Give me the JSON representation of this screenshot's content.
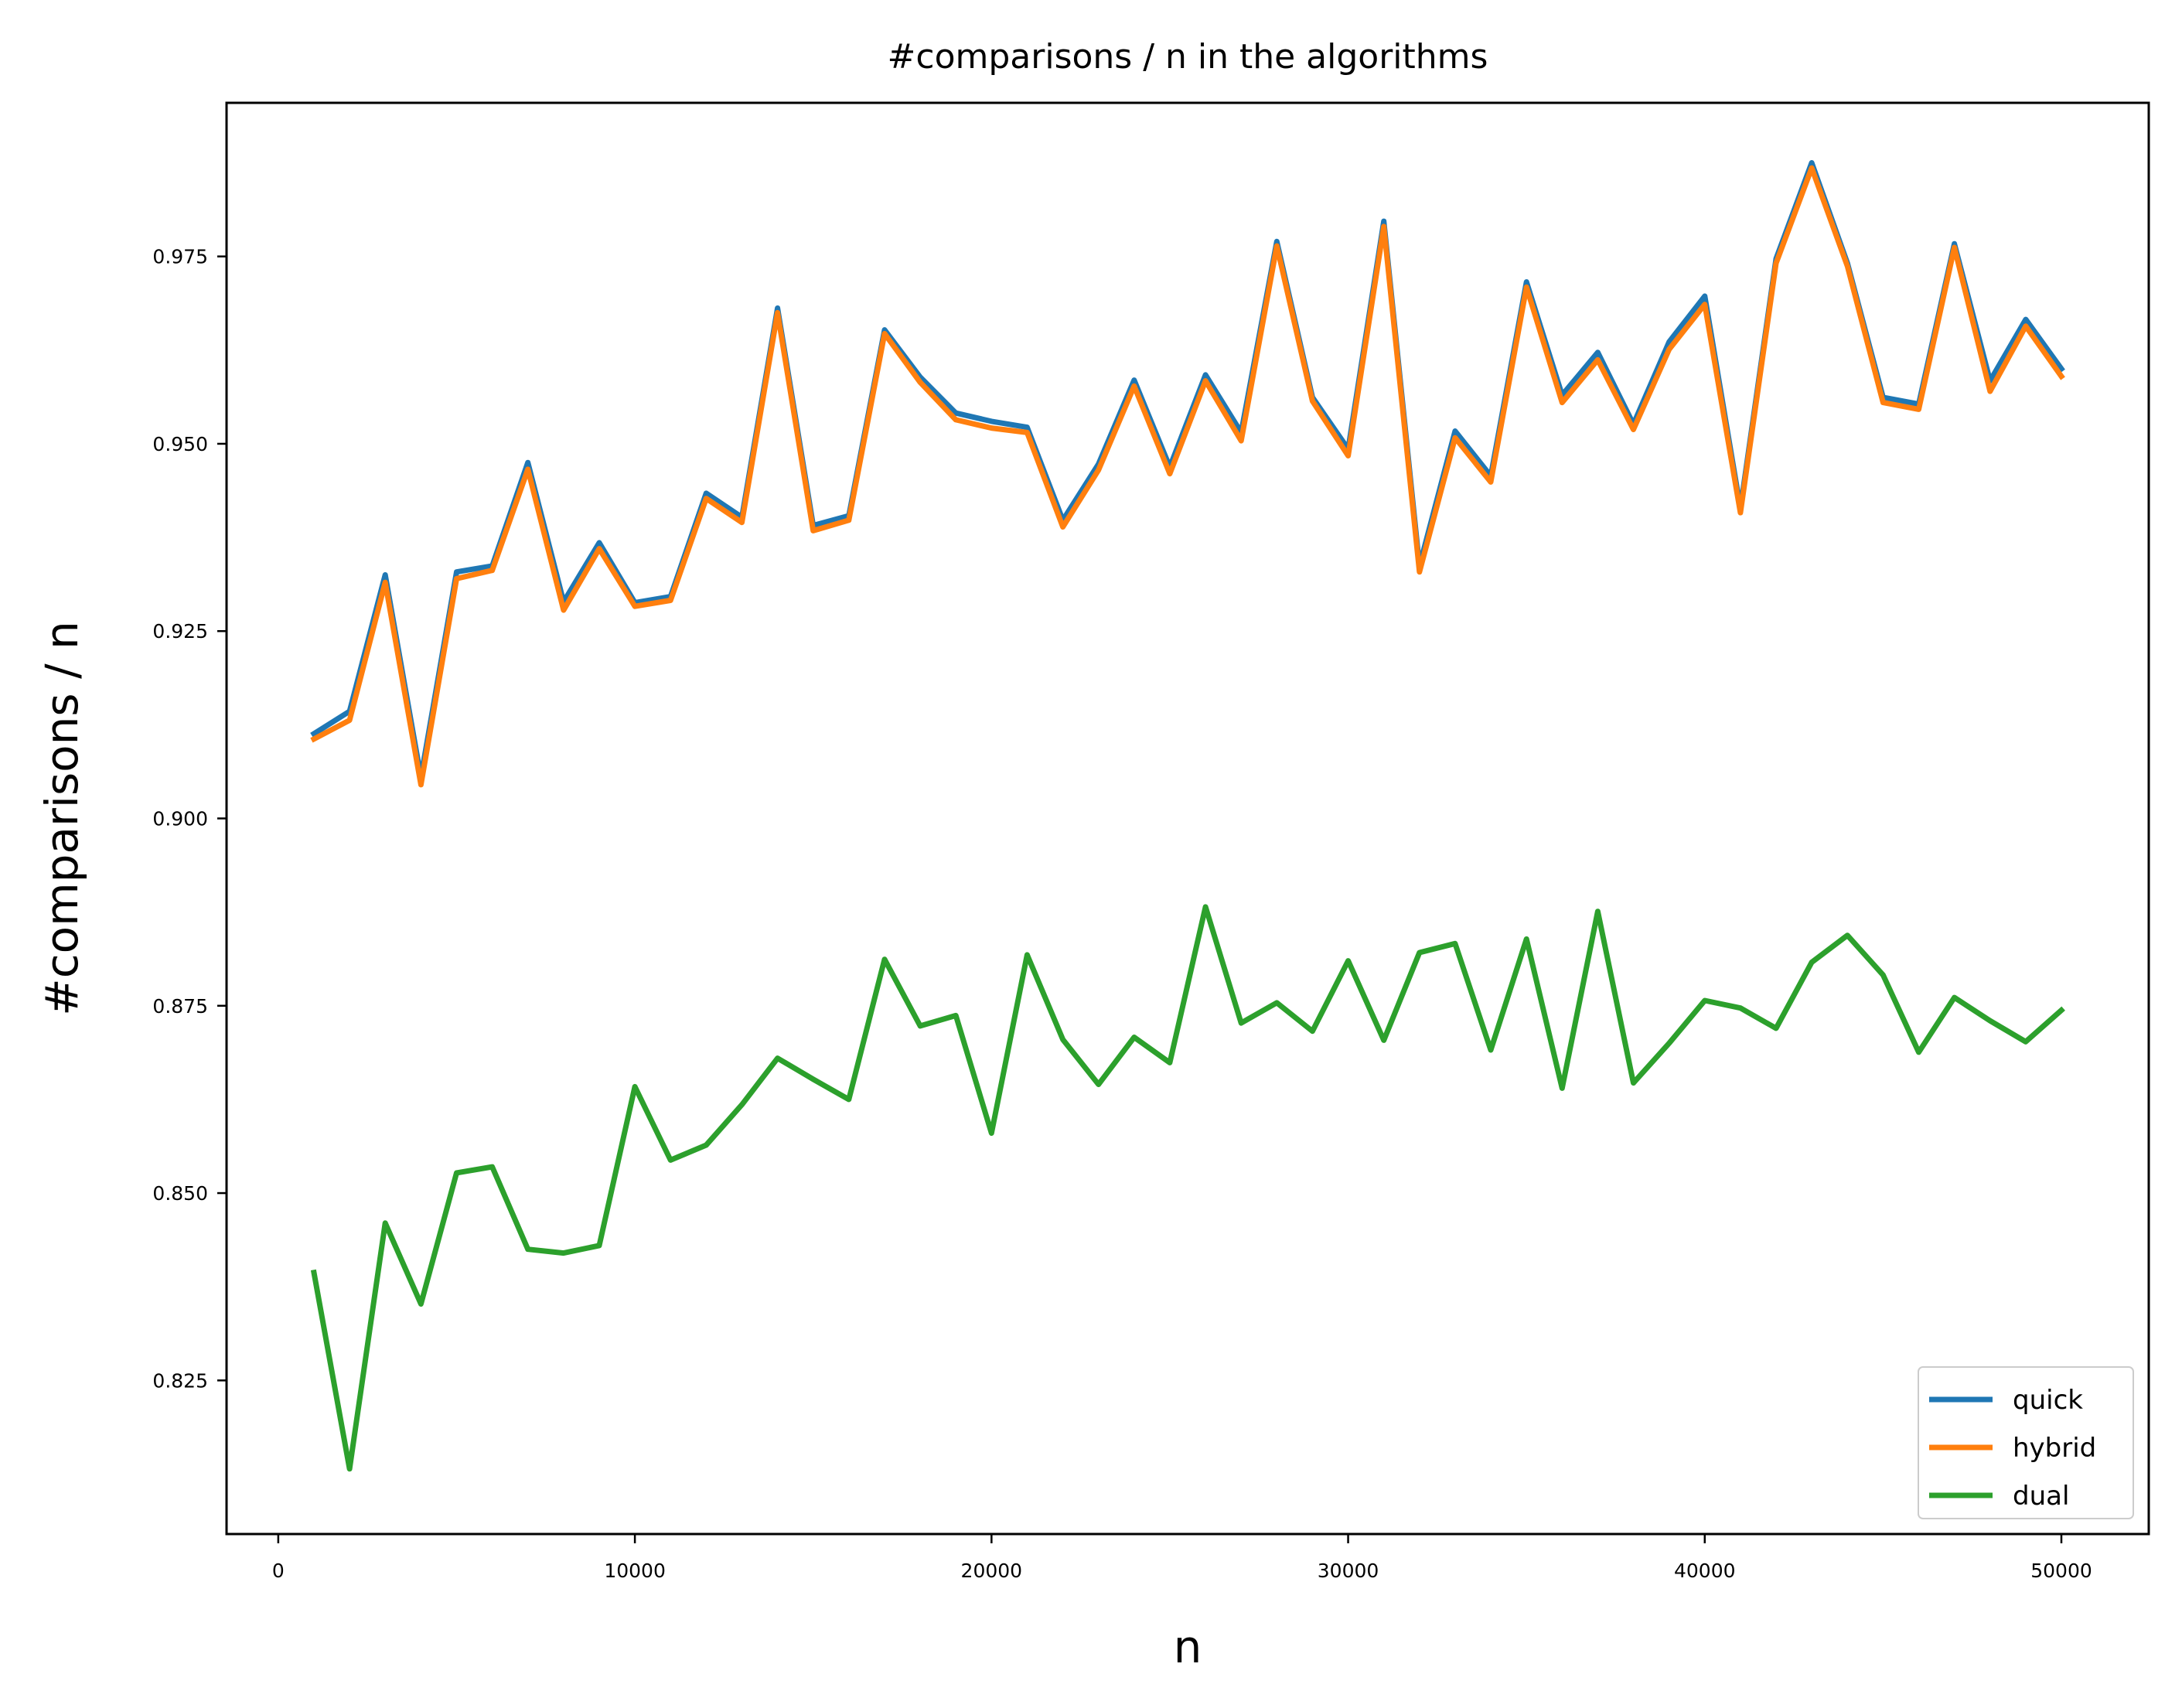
{
  "chart_data": {
    "type": "line",
    "title": "#comparisons / n in the algorithms",
    "xlabel": "n",
    "ylabel": "#comparisons / n",
    "xlim": [
      -1450,
      52450
    ],
    "ylim": [
      0.8045,
      0.9955
    ],
    "xticks": [
      0,
      10000,
      20000,
      30000,
      40000,
      50000
    ],
    "xtick_labels": [
      "0",
      "10000",
      "20000",
      "30000",
      "40000",
      "50000"
    ],
    "yticks": [
      0.825,
      0.85,
      0.875,
      0.9,
      0.925,
      0.95,
      0.975
    ],
    "ytick_labels": [
      "0.825",
      "0.850",
      "0.875",
      "0.900",
      "0.925",
      "0.950",
      "0.975"
    ],
    "grid": false,
    "legend_position": "bottom-right",
    "x": [
      1000,
      2000,
      3000,
      4000,
      5000,
      6000,
      7000,
      8000,
      9000,
      10000,
      11000,
      12000,
      13000,
      14000,
      15000,
      16000,
      17000,
      18000,
      19000,
      20000,
      21000,
      22000,
      23000,
      24000,
      25000,
      26000,
      27000,
      28000,
      29000,
      30000,
      31000,
      32000,
      33000,
      34000,
      35000,
      36000,
      37000,
      38000,
      39000,
      40000,
      41000,
      42000,
      43000,
      44000,
      45000,
      46000,
      47000,
      48000,
      49000,
      50000
    ],
    "series": [
      {
        "name": "quick",
        "color": "#1f77b4",
        "values": [
          0.9113,
          0.9143,
          0.9325,
          0.9055,
          0.9329,
          0.9337,
          0.9475,
          0.9289,
          0.9368,
          0.9288,
          0.9296,
          0.9434,
          0.9402,
          0.9681,
          0.9391,
          0.9404,
          0.9652,
          0.9589,
          0.9541,
          0.953,
          0.9522,
          0.9398,
          0.9473,
          0.9585,
          0.9469,
          0.9592,
          0.9515,
          0.977,
          0.9562,
          0.9493,
          0.9797,
          0.9337,
          0.9517,
          0.9457,
          0.9716,
          0.9565,
          0.9622,
          0.9526,
          0.9636,
          0.9697,
          0.9414,
          0.9747,
          0.9875,
          0.9741,
          0.9562,
          0.9553,
          0.9767,
          0.9584,
          0.9666,
          0.96
        ]
      },
      {
        "name": "hybrid",
        "color": "#ff7f0e",
        "values": [
          0.9106,
          0.9131,
          0.9315,
          0.9045,
          0.932,
          0.9331,
          0.9466,
          0.9278,
          0.936,
          0.9283,
          0.9291,
          0.9427,
          0.9395,
          0.9675,
          0.9384,
          0.9398,
          0.9647,
          0.9582,
          0.9532,
          0.9521,
          0.9515,
          0.9389,
          0.9465,
          0.9577,
          0.946,
          0.9584,
          0.9504,
          0.9764,
          0.9557,
          0.9484,
          0.979,
          0.9329,
          0.9508,
          0.9449,
          0.9709,
          0.9555,
          0.9612,
          0.9519,
          0.9626,
          0.9686,
          0.9408,
          0.9741,
          0.9868,
          0.9737,
          0.9555,
          0.9546,
          0.9762,
          0.957,
          0.9657,
          0.959
        ]
      },
      {
        "name": "dual",
        "color": "#2ca02c",
        "values": [
          0.8394,
          0.8132,
          0.846,
          0.8352,
          0.8527,
          0.8535,
          0.8425,
          0.842,
          0.843,
          0.8642,
          0.8544,
          0.8564,
          0.8618,
          0.868,
          0.8652,
          0.8625,
          0.8812,
          0.8723,
          0.8737,
          0.858,
          0.8818,
          0.8705,
          0.8645,
          0.8708,
          0.8674,
          0.8882,
          0.8727,
          0.8754,
          0.8716,
          0.881,
          0.8704,
          0.8821,
          0.8833,
          0.8691,
          0.8839,
          0.864,
          0.8876,
          0.8647,
          0.87,
          0.8757,
          0.8747,
          0.872,
          0.8808,
          0.8844,
          0.8791,
          0.8688,
          0.8761,
          0.873,
          0.8702,
          0.8744
        ]
      }
    ]
  }
}
